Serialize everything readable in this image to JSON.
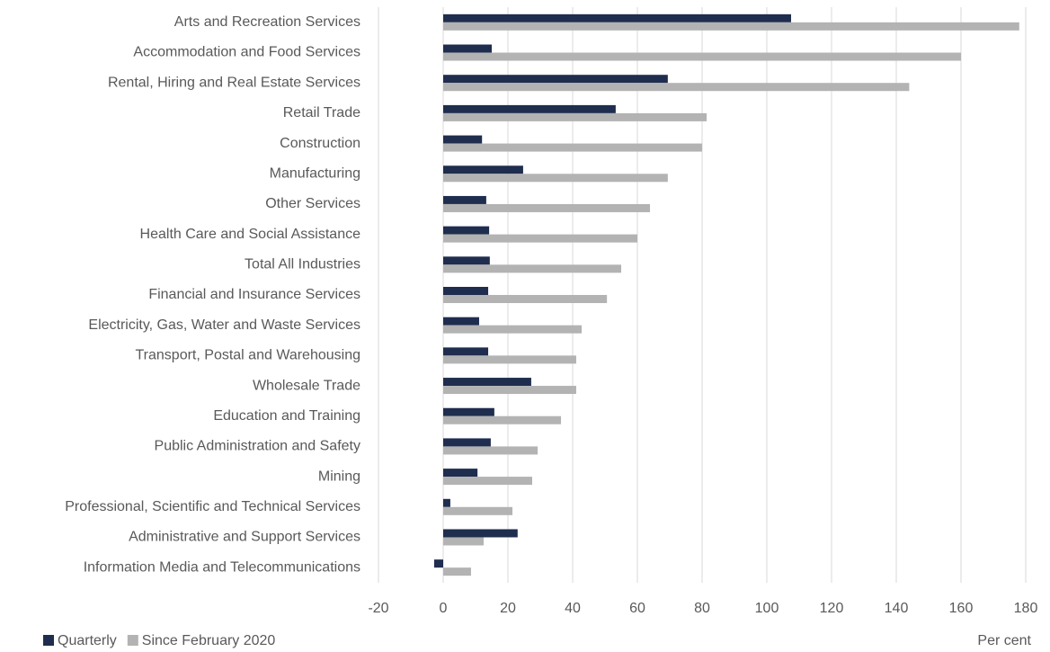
{
  "chart_data": {
    "type": "hbar",
    "x_label": "Per cent",
    "categories": [
      "Arts and Recreation Services",
      "Accommodation and Food Services",
      "Rental, Hiring and Real Estate Services",
      "Retail Trade",
      "Construction",
      "Manufacturing",
      "Other Services",
      "Health Care and Social Assistance",
      "Total All Industries",
      "Financial and Insurance Services",
      "Electricity, Gas, Water and Waste Services",
      "Transport, Postal and Warehousing",
      "Wholesale Trade",
      "Education and Training",
      "Public Administration and Safety",
      "Mining",
      "Professional, Scientific and Technical Services",
      "Administrative and Support Services",
      "Information Media and Telecommunications"
    ],
    "series": [
      {
        "name": "Quarterly",
        "color": "#1f2d4e",
        "values": [
          107.5,
          15,
          69.4,
          53.3,
          12,
          24.7,
          13.3,
          14.2,
          14.4,
          13.9,
          11.1,
          13.9,
          27.2,
          15.8,
          14.7,
          10.6,
          2.2,
          23,
          -2.8
        ]
      },
      {
        "name": "Since February 2020",
        "color": "#b3b3b3",
        "values": [
          178,
          160,
          144,
          81.4,
          80,
          69.4,
          63.9,
          60,
          55,
          50.6,
          42.8,
          41.1,
          41.1,
          36.4,
          29.2,
          27.5,
          21.4,
          12.5,
          8.6
        ]
      }
    ],
    "xlim": [
      -20,
      180
    ],
    "xticks": [
      -20,
      0,
      20,
      40,
      60,
      80,
      100,
      120,
      140,
      160,
      180
    ],
    "grid": true,
    "legend": "bottom-left"
  }
}
